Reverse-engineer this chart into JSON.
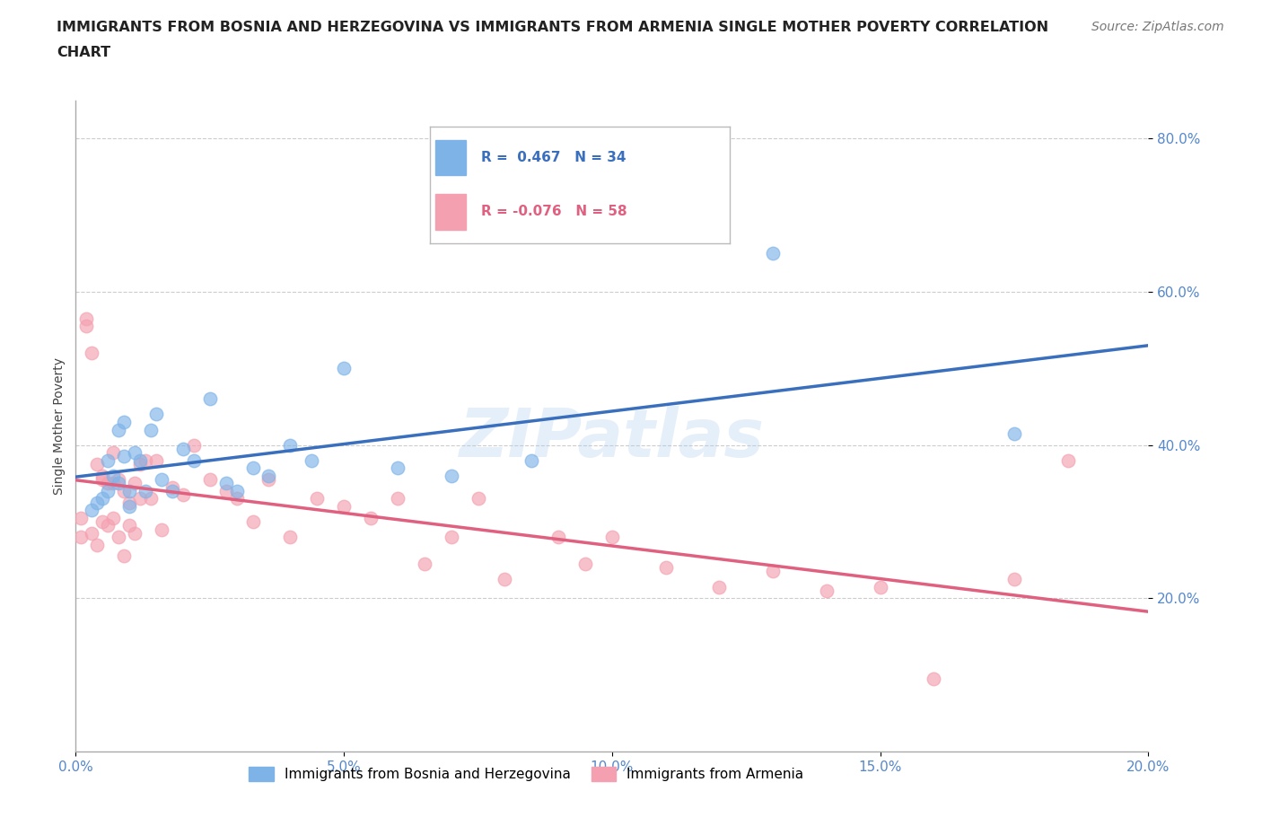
{
  "title_line1": "IMMIGRANTS FROM BOSNIA AND HERZEGOVINA VS IMMIGRANTS FROM ARMENIA SINGLE MOTHER POVERTY CORRELATION",
  "title_line2": "CHART",
  "source": "Source: ZipAtlas.com",
  "ylabel": "Single Mother Poverty",
  "xlim": [
    0.0,
    0.2
  ],
  "ylim": [
    0.0,
    0.85
  ],
  "yticks": [
    0.2,
    0.4,
    0.6,
    0.8
  ],
  "xticks": [
    0.0,
    0.05,
    0.1,
    0.15,
    0.2
  ],
  "r_bosnia": 0.467,
  "n_bosnia": 34,
  "r_armenia": -0.076,
  "n_armenia": 58,
  "blue_color": "#7EB3E8",
  "pink_color": "#F4A0B0",
  "blue_line_color": "#3A6FBE",
  "pink_line_color": "#E06080",
  "watermark": "ZIPatlas",
  "grid_color": "#CCCCCC",
  "tick_color": "#5588CC",
  "bosnia_x": [
    0.003,
    0.004,
    0.005,
    0.006,
    0.006,
    0.007,
    0.008,
    0.008,
    0.009,
    0.009,
    0.01,
    0.01,
    0.011,
    0.012,
    0.013,
    0.014,
    0.015,
    0.016,
    0.018,
    0.02,
    0.022,
    0.025,
    0.028,
    0.03,
    0.033,
    0.036,
    0.04,
    0.044,
    0.05,
    0.06,
    0.07,
    0.085,
    0.13,
    0.175
  ],
  "bosnia_y": [
    0.315,
    0.325,
    0.33,
    0.34,
    0.38,
    0.36,
    0.35,
    0.42,
    0.43,
    0.385,
    0.34,
    0.32,
    0.39,
    0.38,
    0.34,
    0.42,
    0.44,
    0.355,
    0.34,
    0.395,
    0.38,
    0.46,
    0.35,
    0.34,
    0.37,
    0.36,
    0.4,
    0.38,
    0.5,
    0.37,
    0.36,
    0.38,
    0.65,
    0.415
  ],
  "armenia_x": [
    0.001,
    0.001,
    0.002,
    0.002,
    0.003,
    0.003,
    0.004,
    0.004,
    0.005,
    0.005,
    0.005,
    0.006,
    0.006,
    0.007,
    0.007,
    0.007,
    0.008,
    0.008,
    0.009,
    0.009,
    0.01,
    0.01,
    0.011,
    0.011,
    0.012,
    0.012,
    0.013,
    0.014,
    0.015,
    0.016,
    0.018,
    0.02,
    0.022,
    0.025,
    0.028,
    0.03,
    0.033,
    0.036,
    0.04,
    0.045,
    0.05,
    0.055,
    0.06,
    0.065,
    0.07,
    0.075,
    0.08,
    0.09,
    0.095,
    0.1,
    0.11,
    0.12,
    0.13,
    0.14,
    0.15,
    0.16,
    0.175,
    0.185
  ],
  "armenia_y": [
    0.305,
    0.28,
    0.555,
    0.565,
    0.285,
    0.52,
    0.375,
    0.27,
    0.36,
    0.3,
    0.355,
    0.295,
    0.35,
    0.305,
    0.39,
    0.35,
    0.355,
    0.28,
    0.34,
    0.255,
    0.295,
    0.325,
    0.35,
    0.285,
    0.375,
    0.33,
    0.38,
    0.33,
    0.38,
    0.29,
    0.345,
    0.335,
    0.4,
    0.355,
    0.34,
    0.33,
    0.3,
    0.355,
    0.28,
    0.33,
    0.32,
    0.305,
    0.33,
    0.245,
    0.28,
    0.33,
    0.225,
    0.28,
    0.245,
    0.28,
    0.24,
    0.215,
    0.235,
    0.21,
    0.215,
    0.095,
    0.225,
    0.38
  ]
}
